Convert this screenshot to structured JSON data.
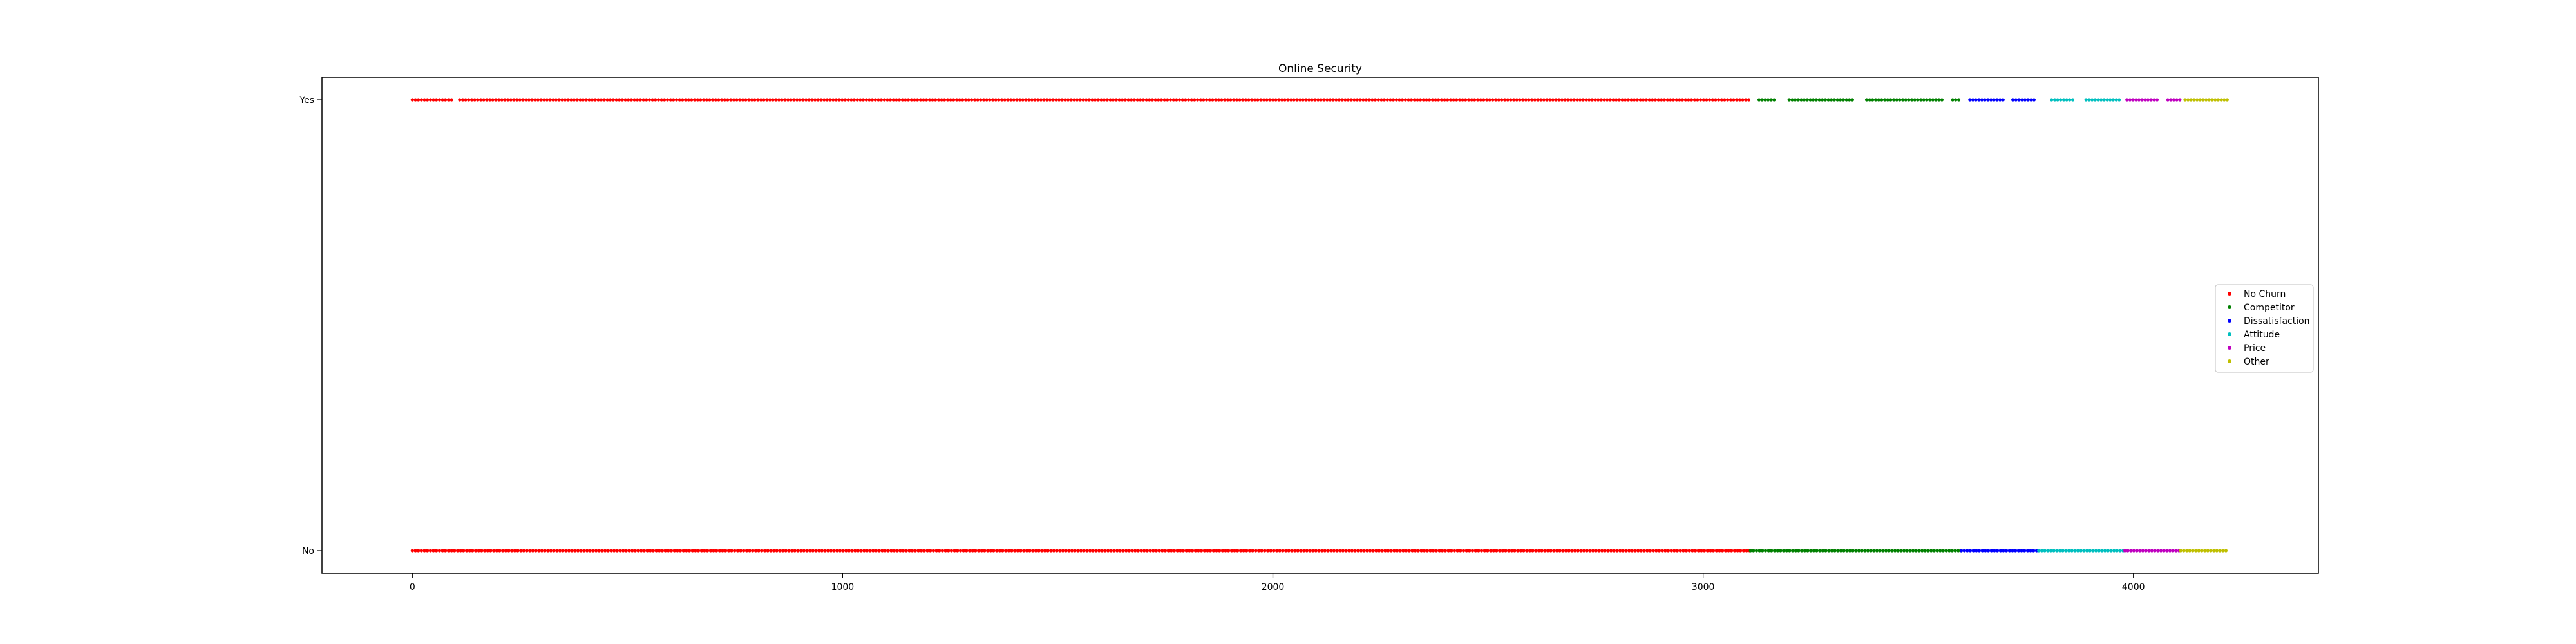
{
  "chart_data": {
    "type": "scatter",
    "title": "Online Security",
    "xlabel": "",
    "ylabel": "",
    "xlim": [
      -210,
      4430
    ],
    "ylim": [
      -0.05,
      1.05
    ],
    "x_ticks": [
      0,
      1000,
      2000,
      3000,
      4000
    ],
    "y_categories": [
      "No",
      "Yes"
    ],
    "grid": false,
    "legend_position": "center-right",
    "series": [
      {
        "name": "No Churn",
        "color": "#ff0000",
        "x_range": [
          0,
          3110
        ],
        "values_by_segment": [
          {
            "y": "Yes",
            "x_clusters": [
              [
                0,
                95
              ],
              [
                110,
                3110
              ]
            ]
          },
          {
            "y": "No",
            "x_clusters": [
              [
                0,
                3110
              ]
            ]
          }
        ]
      },
      {
        "name": "Competitor",
        "color": "#008000",
        "x_range": [
          3110,
          3600
        ],
        "values_by_segment": [
          {
            "y": "Yes",
            "x_clusters": [
              [
                3130,
                3170
              ],
              [
                3200,
                3350
              ],
              [
                3380,
                3560
              ],
              [
                3580,
                3600
              ]
            ]
          },
          {
            "y": "No",
            "x_clusters": [
              [
                3110,
                3600
              ]
            ]
          }
        ]
      },
      {
        "name": "Dissatisfaction",
        "color": "#0000ff",
        "x_range": [
          3600,
          3780
        ],
        "values_by_segment": [
          {
            "y": "Yes",
            "x_clusters": [
              [
                3620,
                3700
              ],
              [
                3720,
                3770
              ]
            ]
          },
          {
            "y": "No",
            "x_clusters": [
              [
                3600,
                3780
              ]
            ]
          }
        ]
      },
      {
        "name": "Attitude",
        "color": "#00bfbf",
        "x_range": [
          3780,
          3980
        ],
        "values_by_segment": [
          {
            "y": "Yes",
            "x_clusters": [
              [
                3810,
                3860
              ],
              [
                3890,
                3970
              ]
            ]
          },
          {
            "y": "No",
            "x_clusters": [
              [
                3780,
                3980
              ]
            ]
          }
        ]
      },
      {
        "name": "Price",
        "color": "#bf00bf",
        "x_range": [
          3980,
          4110
        ],
        "values_by_segment": [
          {
            "y": "Yes",
            "x_clusters": [
              [
                3985,
                4060
              ],
              [
                4080,
                4110
              ]
            ]
          },
          {
            "y": "No",
            "x_clusters": [
              [
                3980,
                4110
              ]
            ]
          }
        ]
      },
      {
        "name": "Other",
        "color": "#bfbf00",
        "x_range": [
          4110,
          4220
        ],
        "values_by_segment": [
          {
            "y": "Yes",
            "x_clusters": [
              [
                4120,
                4220
              ]
            ]
          },
          {
            "y": "No",
            "x_clusters": [
              [
                4110,
                4220
              ]
            ]
          }
        ]
      }
    ]
  }
}
